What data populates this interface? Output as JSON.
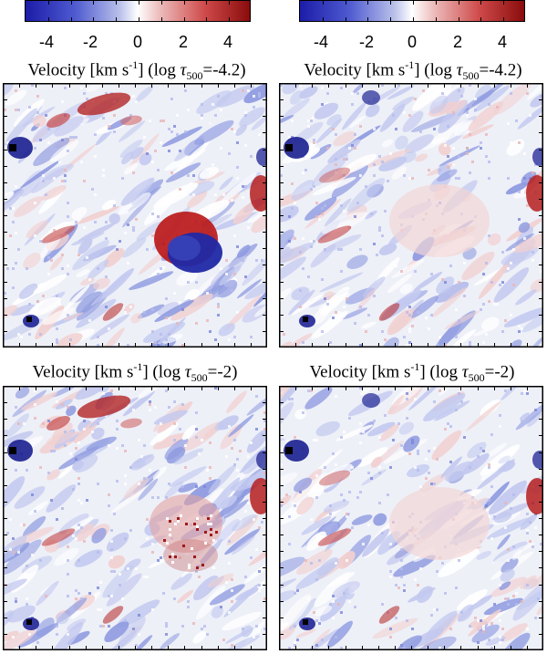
{
  "colorbars": [
    {
      "tick_labels": [
        "-4",
        "-2",
        "0",
        "2",
        "4"
      ]
    },
    {
      "tick_labels": [
        "-4",
        "-2",
        "0",
        "2",
        "4"
      ]
    }
  ],
  "panels": [
    {
      "title_pre": "Velocity [km s",
      "title_sup": "-1",
      "title_mid": "] (log ",
      "title_tau": "τ",
      "title_sub": "500",
      "title_post": "=-4.2)"
    },
    {
      "title_pre": "Velocity [km s",
      "title_sup": "-1",
      "title_mid": "] (log ",
      "title_tau": "τ",
      "title_sub": "500",
      "title_post": "=-4.2)"
    },
    {
      "title_pre": "Velocity [km s",
      "title_sup": "-1",
      "title_mid": "] (log ",
      "title_tau": "τ",
      "title_sub": "500",
      "title_post": "=-2)"
    },
    {
      "title_pre": "Velocity [km s",
      "title_sup": "-1",
      "title_mid": "] (log ",
      "title_tau": "τ",
      "title_sub": "500",
      "title_post": "=-2)"
    }
  ],
  "colors": {
    "blue_extreme": "#1c1ca8",
    "zero": "#ffffff",
    "red_extreme": "#8a0c0c"
  }
}
